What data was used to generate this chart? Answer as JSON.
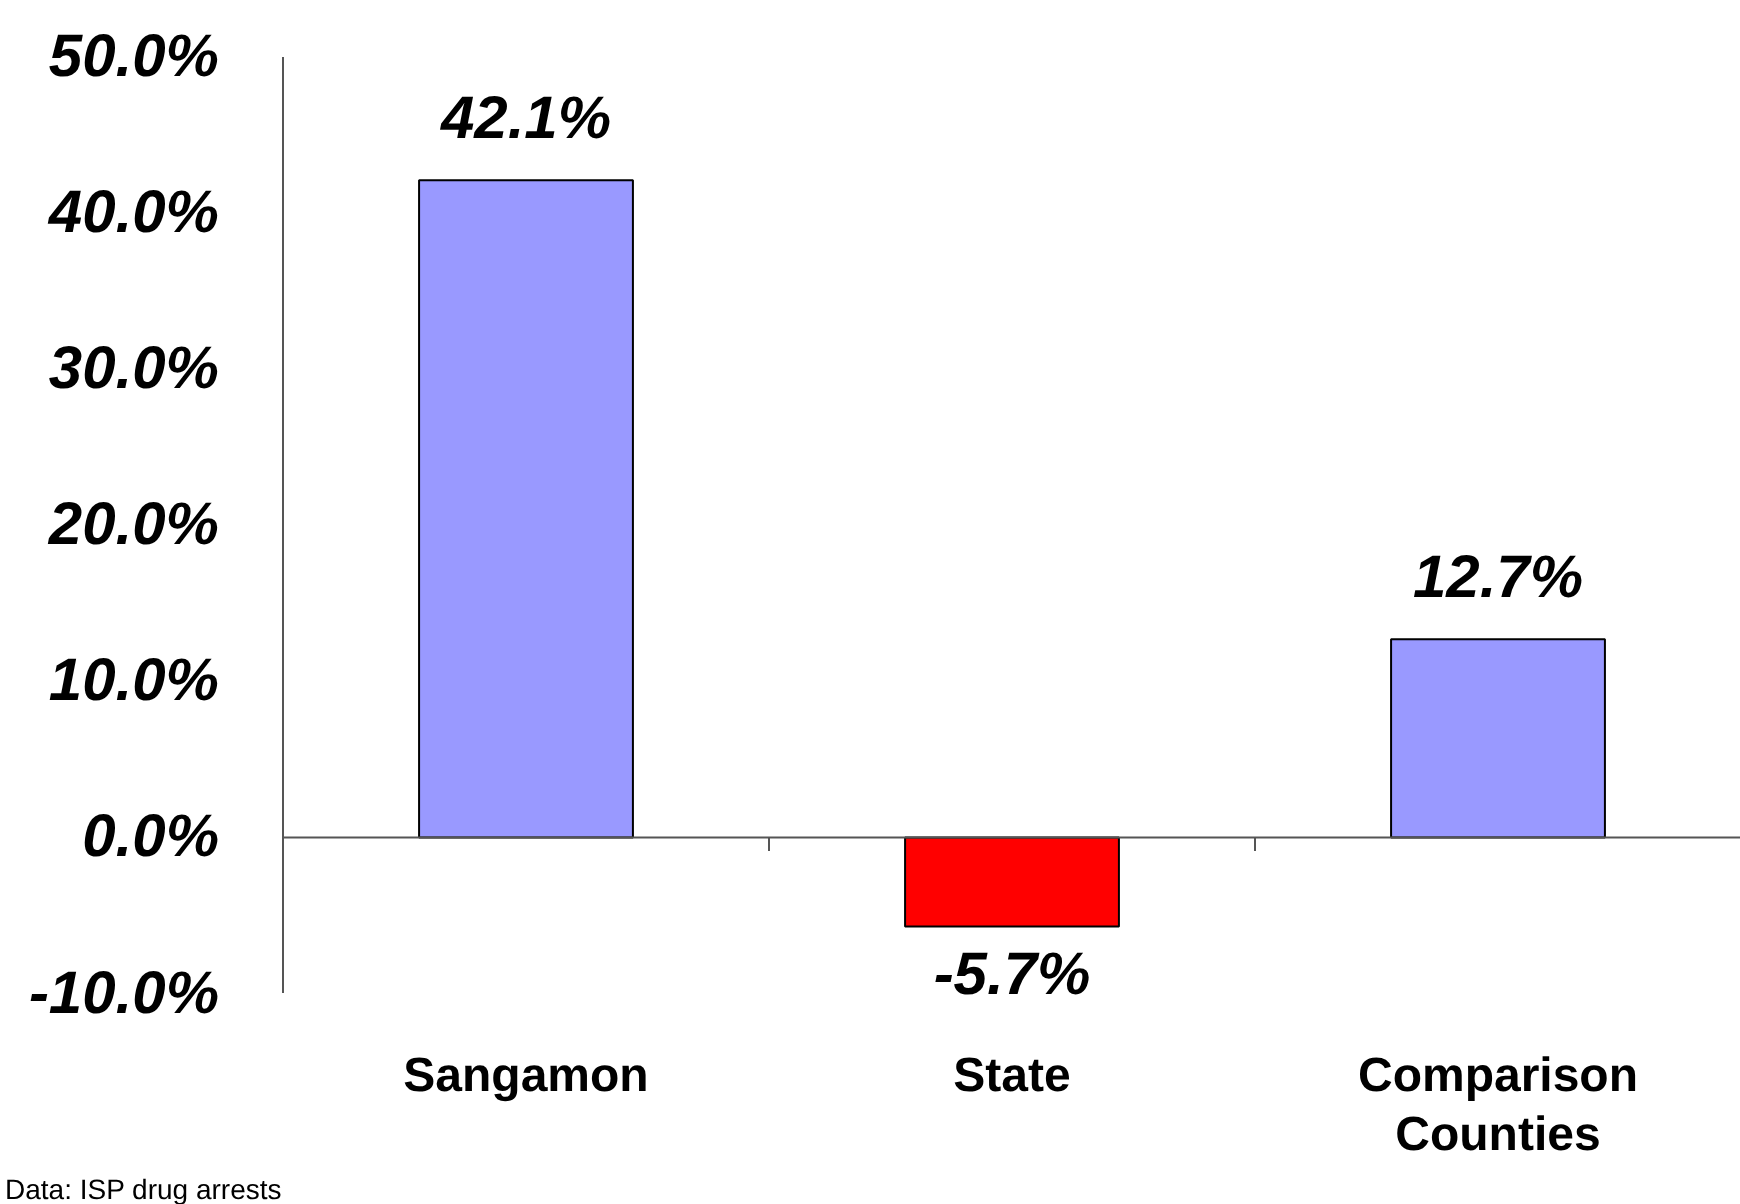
{
  "chart_data": {
    "type": "bar",
    "categories": [
      "Sangamon",
      "State",
      "Comparison Counties"
    ],
    "values": [
      42.1,
      -5.7,
      12.7
    ],
    "colors": [
      "#9999ff",
      "#ff0000",
      "#9999ff"
    ],
    "value_labels": [
      "42.1%",
      "-5.7%",
      "12.7%"
    ],
    "ylim": [
      -10,
      50
    ],
    "yticks": [
      {
        "value": -10,
        "label": "-10.0%"
      },
      {
        "value": 0,
        "label": "0.0%"
      },
      {
        "value": 10,
        "label": "10.0%"
      },
      {
        "value": 20,
        "label": "20.0%"
      },
      {
        "value": 30,
        "label": "30.0%"
      },
      {
        "value": 40,
        "label": "40.0%"
      },
      {
        "value": 50,
        "label": "50.0%"
      }
    ],
    "grid": false,
    "ref_lines": [
      {
        "axis": "y",
        "value": 0,
        "color": "#555555"
      }
    ],
    "annotations": [
      "Data: ISP drug arrests"
    ]
  }
}
